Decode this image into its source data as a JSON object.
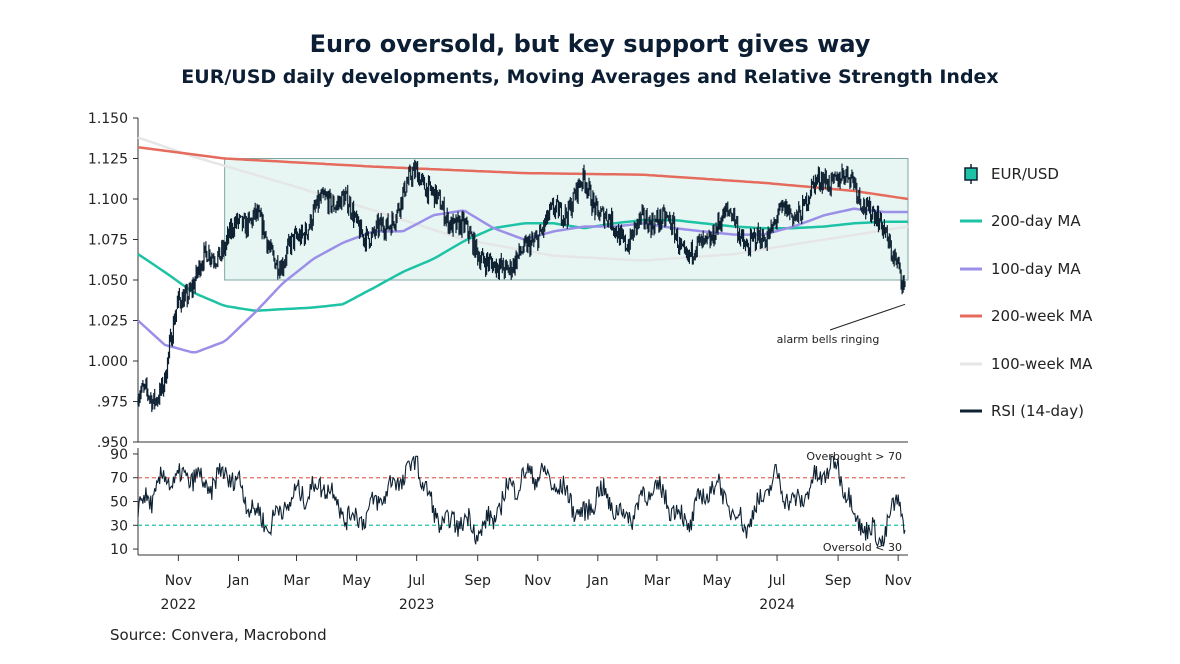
{
  "title": "Euro oversold, but key support gives way",
  "subtitle": "EUR/USD daily developments, Moving Averages and Relative Strength Index",
  "source": "Source: Convera, Macrobond",
  "colors": {
    "eurusd": "#0f2233",
    "ma200d": "#1ec2a5",
    "ma100d": "#9b8fe8",
    "ma200w": "#e56b5d",
    "ma100w": "#e6e6e6",
    "rsi": "#0f2233",
    "range_fill": "#e7f6f3",
    "range_stroke": "#7fa6a3",
    "overbought_line": "#e56b5d",
    "oversold_line": "#1ec2a5"
  },
  "chart_data": [
    {
      "type": "line",
      "name": "price-panel",
      "ylim": [
        0.95,
        1.15
      ],
      "ytick_labels": [
        "1.150",
        "1.125",
        "1.100",
        "1.075",
        "1.050",
        "1.025",
        "1.000",
        ".975",
        ".950"
      ],
      "yticks": [
        1.15,
        1.125,
        1.1,
        1.075,
        1.05,
        1.025,
        1.0,
        0.975,
        0.95
      ],
      "xlim": [
        "2022-10-05",
        "2024-11-25"
      ],
      "x_month_labels": [
        "Nov",
        "Jan",
        "Mar",
        "May",
        "Jul",
        "Sep",
        "Nov",
        "Jan",
        "Mar",
        "May",
        "Jul",
        "Sep",
        "Nov"
      ],
      "x_month_dates": [
        "2022-11-15",
        "2023-01-15",
        "2023-03-15",
        "2023-05-15",
        "2023-07-15",
        "2023-09-15",
        "2023-11-15",
        "2024-01-15",
        "2024-03-15",
        "2024-05-15",
        "2024-07-15",
        "2024-09-15",
        "2024-11-15"
      ],
      "x_year_labels": [
        "2022",
        "2023",
        "2024"
      ],
      "x_year_dates": [
        "2022-11-15",
        "2023-07-15",
        "2024-07-15"
      ],
      "range_box": {
        "x_start": "2023-01-01",
        "x_end": "2024-11-25",
        "y_low": 1.05,
        "y_high": 1.125
      },
      "annotation": {
        "text": "alarm bells ringing",
        "points_to": {
          "x": "2024-11-22",
          "y": 1.035
        }
      },
      "series": [
        {
          "name": "EUR/USD",
          "x": [
            "2022-10-05",
            "2022-10-20",
            "2022-11-01",
            "2022-11-15",
            "2022-12-01",
            "2022-12-15",
            "2023-01-01",
            "2023-01-15",
            "2023-02-01",
            "2023-02-15",
            "2023-03-01",
            "2023-03-15",
            "2023-04-01",
            "2023-04-15",
            "2023-05-01",
            "2023-05-15",
            "2023-06-01",
            "2023-06-15",
            "2023-07-01",
            "2023-07-15",
            "2023-08-01",
            "2023-08-15",
            "2023-09-01",
            "2023-09-15",
            "2023-10-01",
            "2023-10-15",
            "2023-11-01",
            "2023-11-15",
            "2023-12-01",
            "2023-12-15",
            "2024-01-01",
            "2024-01-15",
            "2024-02-01",
            "2024-02-15",
            "2024-03-01",
            "2024-03-15",
            "2024-04-01",
            "2024-04-15",
            "2024-05-01",
            "2024-05-15",
            "2024-06-01",
            "2024-06-15",
            "2024-07-01",
            "2024-07-15",
            "2024-08-01",
            "2024-08-15",
            "2024-09-01",
            "2024-09-15",
            "2024-10-01",
            "2024-10-15",
            "2024-11-01",
            "2024-11-15",
            "2024-11-22"
          ],
          "values": [
            0.98,
            0.975,
            0.99,
            1.035,
            1.05,
            1.065,
            1.07,
            1.085,
            1.09,
            1.07,
            1.06,
            1.075,
            1.09,
            1.1,
            1.1,
            1.085,
            1.075,
            1.085,
            1.1,
            1.12,
            1.1,
            1.09,
            1.08,
            1.07,
            1.055,
            1.06,
            1.065,
            1.08,
            1.09,
            1.095,
            1.11,
            1.095,
            1.08,
            1.075,
            1.085,
            1.09,
            1.08,
            1.065,
            1.07,
            1.085,
            1.09,
            1.07,
            1.075,
            1.09,
            1.09,
            1.1,
            1.115,
            1.11,
            1.115,
            1.09,
            1.085,
            1.055,
            1.04
          ]
        },
        {
          "name": "200-day MA",
          "x": [
            "2022-10-05",
            "2022-11-01",
            "2022-12-01",
            "2023-01-01",
            "2023-02-01",
            "2023-03-01",
            "2023-04-01",
            "2023-05-01",
            "2023-06-01",
            "2023-07-01",
            "2023-08-01",
            "2023-09-01",
            "2023-10-01",
            "2023-11-01",
            "2023-12-01",
            "2024-01-01",
            "2024-02-01",
            "2024-03-01",
            "2024-04-01",
            "2024-05-01",
            "2024-06-01",
            "2024-07-01",
            "2024-08-01",
            "2024-09-01",
            "2024-10-01",
            "2024-11-01",
            "2024-11-25"
          ],
          "values": [
            1.066,
            1.055,
            1.042,
            1.034,
            1.031,
            1.032,
            1.033,
            1.035,
            1.045,
            1.055,
            1.063,
            1.074,
            1.082,
            1.085,
            1.085,
            1.082,
            1.085,
            1.087,
            1.087,
            1.085,
            1.083,
            1.082,
            1.082,
            1.083,
            1.085,
            1.086,
            1.086
          ]
        },
        {
          "name": "100-day MA",
          "x": [
            "2022-10-05",
            "2022-11-01",
            "2022-12-01",
            "2023-01-01",
            "2023-02-01",
            "2023-03-01",
            "2023-04-01",
            "2023-05-01",
            "2023-06-01",
            "2023-07-01",
            "2023-08-01",
            "2023-09-01",
            "2023-10-01",
            "2023-11-01",
            "2023-12-01",
            "2024-01-01",
            "2024-02-01",
            "2024-03-01",
            "2024-04-01",
            "2024-05-01",
            "2024-06-01",
            "2024-07-01",
            "2024-08-01",
            "2024-09-01",
            "2024-10-01",
            "2024-11-01",
            "2024-11-25"
          ],
          "values": [
            1.025,
            1.01,
            1.005,
            1.012,
            1.03,
            1.048,
            1.063,
            1.073,
            1.08,
            1.08,
            1.09,
            1.093,
            1.082,
            1.075,
            1.08,
            1.083,
            1.083,
            1.085,
            1.082,
            1.08,
            1.078,
            1.078,
            1.083,
            1.09,
            1.094,
            1.092,
            1.092
          ]
        },
        {
          "name": "200-week MA",
          "x": [
            "2022-10-05",
            "2023-01-01",
            "2023-06-01",
            "2023-11-01",
            "2024-03-01",
            "2024-07-01",
            "2024-10-01",
            "2024-11-25"
          ],
          "values": [
            1.132,
            1.125,
            1.12,
            1.116,
            1.115,
            1.11,
            1.105,
            1.1
          ]
        },
        {
          "name": "100-week MA",
          "x": [
            "2022-10-05",
            "2022-12-01",
            "2023-03-01",
            "2023-06-01",
            "2023-09-01",
            "2023-12-01",
            "2024-03-01",
            "2024-06-01",
            "2024-09-01",
            "2024-11-25"
          ],
          "values": [
            1.138,
            1.126,
            1.11,
            1.093,
            1.075,
            1.065,
            1.062,
            1.066,
            1.075,
            1.083
          ]
        }
      ]
    },
    {
      "type": "line",
      "name": "rsi-panel",
      "ylim": [
        5,
        95
      ],
      "ytick_labels": [
        "90",
        "70",
        "50",
        "30",
        "10"
      ],
      "yticks": [
        90,
        70,
        50,
        30,
        10
      ],
      "overbought": {
        "value": 70,
        "label": "Overbought > 70"
      },
      "oversold": {
        "value": 30,
        "label": "Oversold < 30"
      },
      "series": [
        {
          "name": "RSI (14-day)",
          "x": [
            "2022-10-05",
            "2022-10-20",
            "2022-11-01",
            "2022-11-15",
            "2022-12-01",
            "2022-12-15",
            "2023-01-01",
            "2023-01-15",
            "2023-02-01",
            "2023-02-15",
            "2023-03-01",
            "2023-03-15",
            "2023-04-01",
            "2023-04-15",
            "2023-05-01",
            "2023-05-15",
            "2023-06-01",
            "2023-06-15",
            "2023-07-01",
            "2023-07-15",
            "2023-08-01",
            "2023-08-15",
            "2023-09-01",
            "2023-09-15",
            "2023-10-01",
            "2023-10-15",
            "2023-11-01",
            "2023-11-15",
            "2023-12-01",
            "2023-12-15",
            "2024-01-01",
            "2024-01-15",
            "2024-02-01",
            "2024-02-15",
            "2024-03-01",
            "2024-03-15",
            "2024-04-01",
            "2024-04-15",
            "2024-05-01",
            "2024-05-15",
            "2024-06-01",
            "2024-06-15",
            "2024-07-01",
            "2024-07-15",
            "2024-08-01",
            "2024-08-15",
            "2024-09-01",
            "2024-09-15",
            "2024-10-01",
            "2024-10-15",
            "2024-11-01",
            "2024-11-15",
            "2024-11-22"
          ],
          "values": [
            45,
            55,
            70,
            68,
            72,
            60,
            75,
            65,
            40,
            30,
            45,
            55,
            60,
            65,
            40,
            35,
            45,
            60,
            70,
            85,
            40,
            30,
            35,
            25,
            35,
            60,
            70,
            75,
            65,
            55,
            35,
            60,
            45,
            35,
            55,
            60,
            45,
            30,
            55,
            65,
            40,
            30,
            55,
            70,
            45,
            60,
            75,
            80,
            40,
            25,
            20,
            55,
            30
          ]
        }
      ]
    }
  ],
  "legend": [
    {
      "label": "EUR/USD",
      "key": "eurusd",
      "kind": "candle"
    },
    {
      "label": "200-day MA",
      "key": "ma200d",
      "kind": "line"
    },
    {
      "label": "100-day MA",
      "key": "ma100d",
      "kind": "line"
    },
    {
      "label": "200-week MA",
      "key": "ma200w",
      "kind": "line"
    },
    {
      "label": "100-week MA",
      "key": "ma100w",
      "kind": "line"
    },
    {
      "label": "RSI (14-day)",
      "key": "rsi",
      "kind": "line"
    }
  ]
}
